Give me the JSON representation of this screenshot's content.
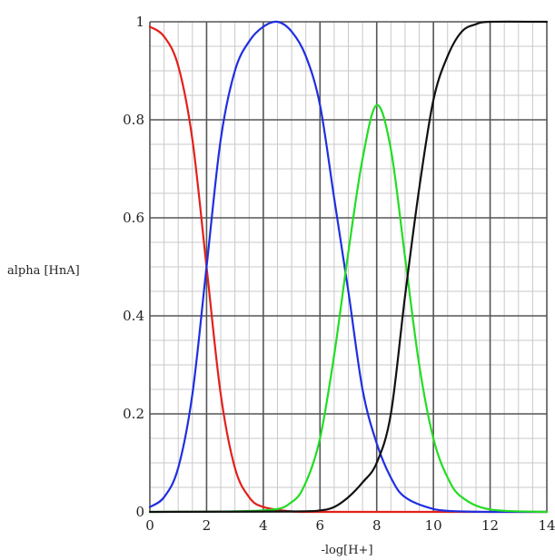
{
  "chart_data": {
    "type": "line",
    "title": "",
    "xlabel": "-log[H+]",
    "ylabel": "alpha [HnA]",
    "xlim": [
      0,
      14
    ],
    "ylim": [
      0,
      1
    ],
    "grid": true,
    "x_ticks": [
      "0",
      "2",
      "4",
      "6",
      "8",
      "10",
      "12",
      "14"
    ],
    "y_ticks": [
      "0",
      "0.2",
      "0.4",
      "0.6",
      "0.8",
      "1"
    ],
    "series": [
      {
        "color": "#e3201b",
        "x": [
          0,
          0.5,
          1,
          1.5,
          2,
          2.5,
          3,
          3.5,
          4,
          5,
          6,
          8,
          10,
          14
        ],
        "y": [
          0.99,
          0.97,
          0.91,
          0.76,
          0.5,
          0.24,
          0.09,
          0.03,
          0.01,
          0.001,
          0,
          0,
          0,
          0
        ]
      },
      {
        "color": "#1f2fe0",
        "x": [
          0,
          0.5,
          1,
          1.5,
          2,
          2.5,
          3,
          3.5,
          4,
          4.5,
          5,
          5.5,
          6,
          6.5,
          7,
          7.5,
          8,
          8.5,
          9,
          10,
          11,
          12,
          14
        ],
        "y": [
          0.01,
          0.03,
          0.09,
          0.24,
          0.5,
          0.76,
          0.9,
          0.96,
          0.99,
          1.0,
          0.98,
          0.93,
          0.83,
          0.64,
          0.45,
          0.25,
          0.14,
          0.07,
          0.03,
          0.006,
          0.001,
          0,
          0
        ]
      },
      {
        "color": "#22dd22",
        "x": [
          0,
          4,
          5,
          5.5,
          6,
          6.5,
          7,
          7.5,
          8,
          8.5,
          9,
          9.5,
          10,
          10.5,
          11,
          12,
          14
        ],
        "y": [
          0,
          0.003,
          0.02,
          0.06,
          0.15,
          0.32,
          0.53,
          0.72,
          0.83,
          0.74,
          0.52,
          0.3,
          0.15,
          0.07,
          0.03,
          0.005,
          0
        ]
      },
      {
        "color": "#111111",
        "x": [
          0,
          5,
          6,
          6.5,
          7,
          7.5,
          8,
          8.5,
          9,
          9.5,
          10,
          10.5,
          11,
          11.5,
          12,
          14
        ],
        "y": [
          0,
          0.001,
          0.003,
          0.01,
          0.03,
          0.06,
          0.1,
          0.2,
          0.44,
          0.66,
          0.84,
          0.93,
          0.98,
          0.995,
          1.0,
          1.0
        ]
      }
    ]
  }
}
